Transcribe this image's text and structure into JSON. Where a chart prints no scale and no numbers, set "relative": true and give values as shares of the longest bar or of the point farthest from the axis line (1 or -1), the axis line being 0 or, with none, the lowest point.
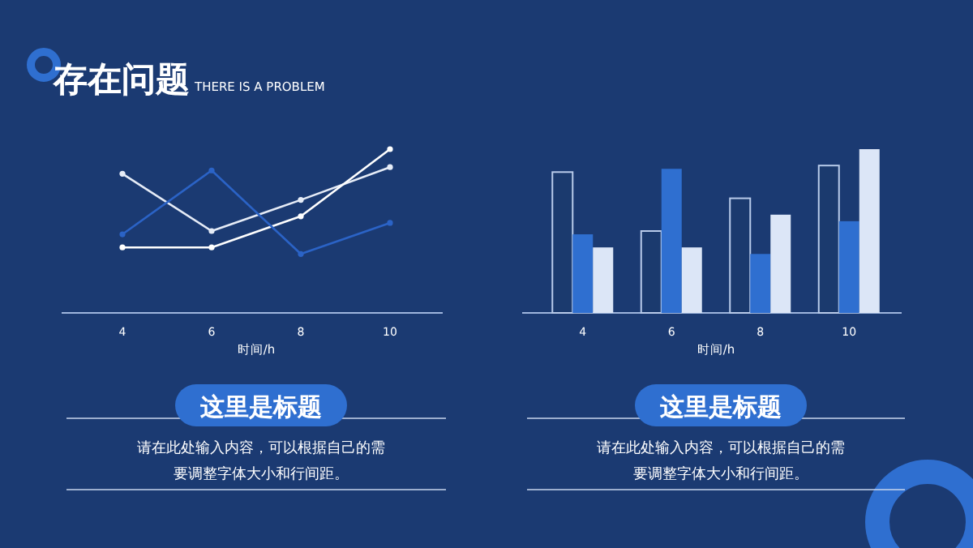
{
  "chart_data": [
    {
      "type": "other",
      "title": "存在问题",
      "subtitle": "THERE IS A PROBLEM"
    },
    {
      "type": "line",
      "title": "这里是标题",
      "xlabel": "时间/h",
      "relative": true,
      "marker": "circle",
      "categories": [
        "4",
        "6",
        "8",
        "10"
      ],
      "series": [
        {
          "color": "#e6ecf7",
          "values": [
            0.85,
            0.5,
            0.69,
            0.89
          ]
        },
        {
          "color": "#ffffff",
          "values": [
            0.4,
            0.4,
            0.59,
            1.0
          ]
        },
        {
          "color": "#2b63c6",
          "values": [
            0.48,
            0.87,
            0.36,
            0.55
          ]
        }
      ],
      "annotations": [
        "请在此处输入内容，可以根据自己的需要调整字体大小和行间距。"
      ]
    },
    {
      "type": "bar",
      "title": "这里是标题",
      "xlabel": "时间/h",
      "relative": true,
      "categories": [
        "4",
        "6",
        "8",
        "10"
      ],
      "series": [
        {
          "color": "#1b3a6e",
          "values": [
            0.86,
            0.5,
            0.7,
            0.9
          ]
        },
        {
          "color": "#2f6fd0",
          "values": [
            0.48,
            0.88,
            0.36,
            0.56
          ]
        },
        {
          "color": "#dce6f7",
          "values": [
            0.4,
            0.4,
            0.6,
            1.0
          ]
        }
      ],
      "annotations": [
        "请在此处输入内容，可以根据自己的需要调整字体大小和行间距。"
      ]
    }
  ]
}
